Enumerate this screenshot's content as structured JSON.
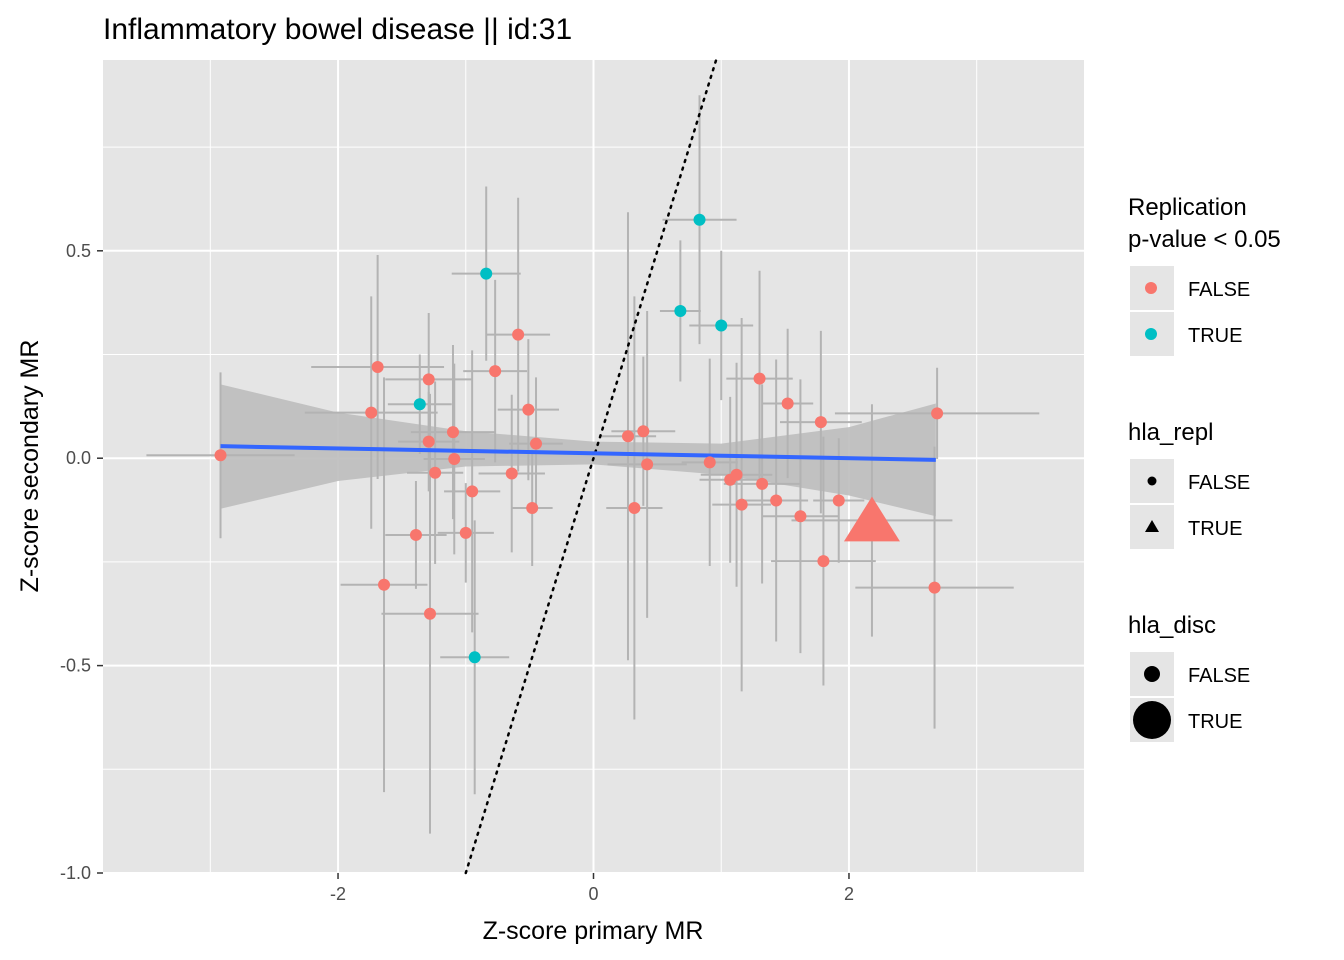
{
  "chart_data": {
    "type": "scatter",
    "title": "Inflammatory bowel disease || id:31",
    "xlabel": "Z-score primary MR",
    "ylabel": "Z-score secondary MR",
    "xlim": [
      -3.84,
      3.84
    ],
    "ylim": [
      -1.0,
      0.96
    ],
    "x_ticks": [
      -2,
      0,
      2
    ],
    "x_tick_labels": [
      "-2",
      "0",
      "2"
    ],
    "y_ticks": [
      -1.0,
      -0.5,
      0.0,
      0.5
    ],
    "y_tick_labels": [
      "-1.0",
      "-0.5",
      "0.0",
      "0.5"
    ],
    "grid": true,
    "colors": {
      "panel_bg": "#e5e5e5",
      "grid": "#ffffff",
      "false_points": "#f8766d",
      "true_points": "#00bfc4",
      "error_bars": "#b3b3b3",
      "fit_line": "#3366ff",
      "ribbon": "#bdbdbd"
    },
    "reference_line": {
      "slope": 1,
      "intercept": 0,
      "style": "dotted",
      "color": "#000000"
    },
    "fit": {
      "method": "lm",
      "x_range": [
        -2.92,
        2.68
      ],
      "y_at_start": 0.029,
      "y_at_end": -0.004,
      "ribbon": [
        {
          "x": -2.92,
          "lo": -0.122,
          "hi": 0.178
        },
        {
          "x": -2.0,
          "lo": -0.055,
          "hi": 0.11
        },
        {
          "x": -1.0,
          "lo": -0.02,
          "hi": 0.065
        },
        {
          "x": 0.0,
          "lo": -0.015,
          "hi": 0.04
        },
        {
          "x": 1.0,
          "lo": -0.04,
          "hi": 0.035
        },
        {
          "x": 2.0,
          "lo": -0.09,
          "hi": 0.075
        },
        {
          "x": 2.68,
          "lo": -0.14,
          "hi": 0.132
        }
      ]
    },
    "points": [
      {
        "x": -2.92,
        "y": 0.007,
        "xerr": 0.58,
        "yerr": 0.2,
        "repl": false
      },
      {
        "x": -1.74,
        "y": 0.11,
        "xerr": 0.52,
        "yerr": 0.28,
        "repl": false
      },
      {
        "x": -1.69,
        "y": 0.22,
        "xerr": 0.52,
        "yerr": 0.27,
        "repl": false
      },
      {
        "x": -1.64,
        "y": -0.305,
        "xerr": 0.34,
        "yerr": 0.5,
        "repl": false
      },
      {
        "x": -1.39,
        "y": -0.185,
        "xerr": 0.24,
        "yerr": 0.13,
        "repl": false
      },
      {
        "x": -1.36,
        "y": 0.13,
        "xerr": 0.25,
        "yerr": 0.12,
        "repl": true
      },
      {
        "x": -1.29,
        "y": 0.19,
        "xerr": 0.34,
        "yerr": 0.16,
        "repl": false
      },
      {
        "x": -1.29,
        "y": 0.04,
        "xerr": 0.24,
        "yerr": 0.12,
        "repl": false
      },
      {
        "x": -1.28,
        "y": -0.375,
        "xerr": 0.38,
        "yerr": 0.53,
        "repl": false
      },
      {
        "x": -1.24,
        "y": -0.035,
        "xerr": 0.22,
        "yerr": 0.22,
        "repl": false
      },
      {
        "x": -1.1,
        "y": 0.063,
        "xerr": 0.33,
        "yerr": 0.21,
        "repl": false
      },
      {
        "x": -1.09,
        "y": -0.002,
        "xerr": 0.24,
        "yerr": 0.23,
        "repl": false
      },
      {
        "x": -1.0,
        "y": -0.18,
        "xerr": 0.22,
        "yerr": 0.12,
        "repl": false
      },
      {
        "x": -0.95,
        "y": -0.08,
        "xerr": 0.22,
        "yerr": 0.34,
        "repl": false
      },
      {
        "x": -0.93,
        "y": -0.48,
        "xerr": 0.27,
        "yerr": 0.33,
        "repl": true
      },
      {
        "x": -0.84,
        "y": 0.445,
        "xerr": 0.27,
        "yerr": 0.21,
        "repl": true
      },
      {
        "x": -0.77,
        "y": 0.21,
        "xerr": 0.25,
        "yerr": 0.22,
        "repl": false
      },
      {
        "x": -0.64,
        "y": -0.037,
        "xerr": 0.26,
        "yerr": 0.19,
        "repl": false
      },
      {
        "x": -0.59,
        "y": 0.298,
        "xerr": 0.25,
        "yerr": 0.33,
        "repl": false
      },
      {
        "x": -0.51,
        "y": 0.117,
        "xerr": 0.24,
        "yerr": 0.17,
        "repl": false
      },
      {
        "x": -0.48,
        "y": -0.12,
        "xerr": 0.16,
        "yerr": 0.14,
        "repl": false
      },
      {
        "x": -0.45,
        "y": 0.035,
        "xerr": 0.21,
        "yerr": 0.16,
        "repl": false
      },
      {
        "x": 0.27,
        "y": 0.053,
        "xerr": 0.22,
        "yerr": 0.54,
        "repl": false
      },
      {
        "x": 0.32,
        "y": -0.12,
        "xerr": 0.22,
        "yerr": 0.51,
        "repl": false
      },
      {
        "x": 0.39,
        "y": 0.065,
        "xerr": 0.25,
        "yerr": 0.18,
        "repl": false
      },
      {
        "x": 0.42,
        "y": -0.015,
        "xerr": 0.31,
        "yerr": 0.37,
        "repl": false
      },
      {
        "x": 0.68,
        "y": 0.355,
        "xerr": 0.16,
        "yerr": 0.17,
        "repl": true
      },
      {
        "x": 0.83,
        "y": 0.575,
        "xerr": 0.29,
        "yerr": 0.3,
        "repl": true
      },
      {
        "x": 0.91,
        "y": -0.01,
        "xerr": 0.22,
        "yerr": 0.25,
        "repl": false
      },
      {
        "x": 1.0,
        "y": 0.32,
        "xerr": 0.25,
        "yerr": 0.18,
        "repl": true
      },
      {
        "x": 1.07,
        "y": -0.052,
        "xerr": 0.24,
        "yerr": 0.2,
        "repl": false
      },
      {
        "x": 1.12,
        "y": -0.04,
        "xerr": 0.28,
        "yerr": 0.27,
        "repl": false
      },
      {
        "x": 1.16,
        "y": -0.112,
        "xerr": 0.23,
        "yerr": 0.45,
        "repl": false
      },
      {
        "x": 1.3,
        "y": 0.192,
        "xerr": 0.26,
        "yerr": 0.26,
        "repl": false
      },
      {
        "x": 1.32,
        "y": -0.062,
        "xerr": 0.3,
        "yerr": 0.24,
        "repl": false
      },
      {
        "x": 1.43,
        "y": -0.102,
        "xerr": 0.25,
        "yerr": 0.34,
        "repl": false
      },
      {
        "x": 1.52,
        "y": 0.132,
        "xerr": 0.2,
        "yerr": 0.18,
        "repl": false
      },
      {
        "x": 1.62,
        "y": -0.14,
        "xerr": 0.3,
        "yerr": 0.33,
        "repl": false
      },
      {
        "x": 1.78,
        "y": 0.087,
        "xerr": 0.32,
        "yerr": 0.22,
        "repl": false
      },
      {
        "x": 1.8,
        "y": -0.248,
        "xerr": 0.41,
        "yerr": 0.3,
        "repl": false
      },
      {
        "x": 1.92,
        "y": -0.102,
        "xerr": 0.2,
        "yerr": 0.15,
        "repl": false
      },
      {
        "x": 2.18,
        "y": -0.15,
        "xerr": 0.63,
        "yerr": 0.28,
        "repl": false,
        "hla_repl": true,
        "hla_disc": true
      },
      {
        "x": 2.67,
        "y": -0.312,
        "xerr": 0.62,
        "yerr": 0.34,
        "repl": false
      },
      {
        "x": 2.69,
        "y": 0.108,
        "xerr": 0.8,
        "yerr": 0.11,
        "repl": false
      }
    ]
  },
  "legend": {
    "replication": {
      "title_line1": "Replication",
      "title_line2": "p-value < 0.05",
      "false_label": "FALSE",
      "true_label": "TRUE"
    },
    "hla_repl": {
      "title": "hla_repl",
      "false_label": "FALSE",
      "true_label": "TRUE"
    },
    "hla_disc": {
      "title": "hla_disc",
      "false_label": "FALSE",
      "true_label": "TRUE"
    }
  }
}
